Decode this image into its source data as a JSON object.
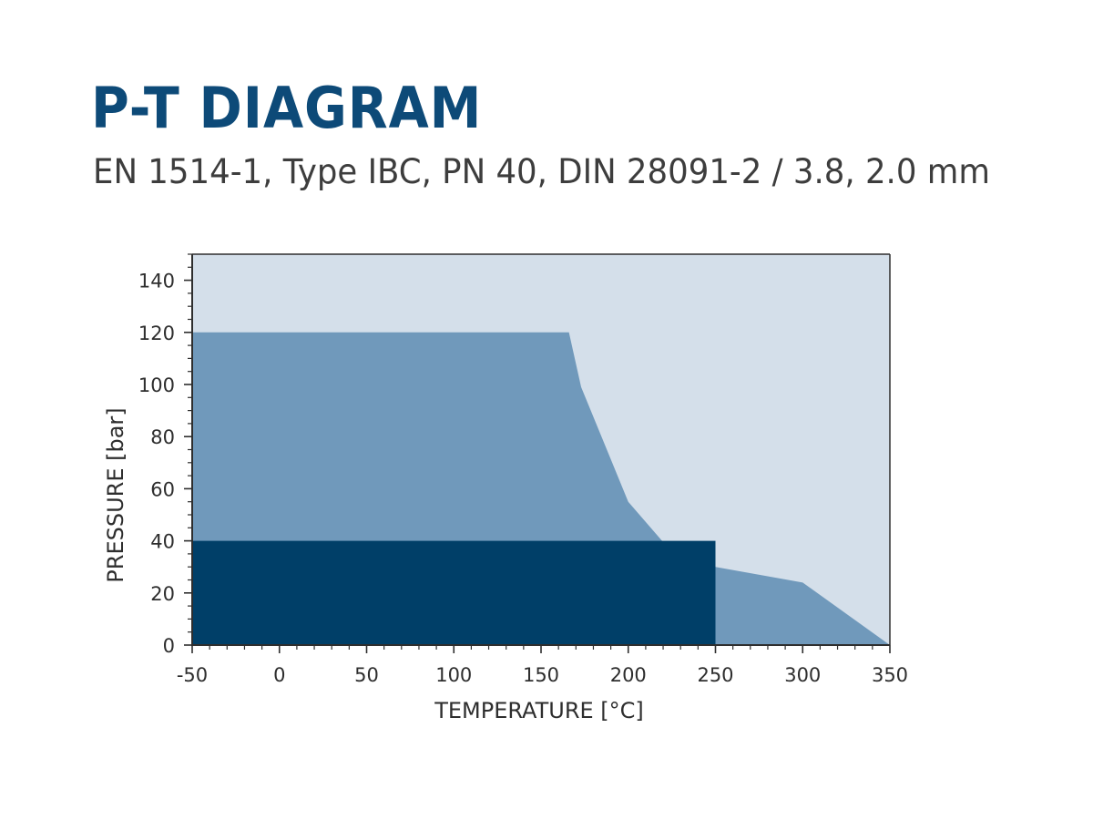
{
  "header": {
    "title": "P-T DIAGRAM",
    "subtitle": "EN 1514-1, Type IBC, PN 40, DIN 28091-2 / 3.8, 2.0 mm"
  },
  "colors": {
    "plot_background": "#d4dfea",
    "upper_region": "#7099bb",
    "lower_region": "#003f68",
    "title": "#0d4a78",
    "axis": "#2e2e2e"
  },
  "chart_data": {
    "type": "area",
    "title": "P-T DIAGRAM",
    "subtitle": "EN 1514-1, Type IBC, PN 40, DIN 28091-2 / 3.8, 2.0 mm",
    "xlabel": "TEMPERATURE [°C]",
    "ylabel": "PRESSURE [bar]",
    "xlim": [
      -50,
      350
    ],
    "ylim": [
      0,
      150
    ],
    "xticks": [
      -50,
      0,
      50,
      100,
      150,
      200,
      250,
      300,
      350
    ],
    "yticks": [
      0,
      20,
      40,
      60,
      80,
      100,
      120,
      140
    ],
    "grid": false,
    "legend": "none",
    "series": [
      {
        "x": [
          -50,
          166,
          173,
          200,
          222,
          250,
          300,
          350
        ],
        "y": [
          120,
          120,
          99,
          55,
          38,
          30,
          24,
          0
        ],
        "color": "#7099bb"
      },
      {
        "x": [
          -50,
          250
        ],
        "y": [
          40,
          40
        ],
        "color": "#003f68"
      }
    ]
  }
}
